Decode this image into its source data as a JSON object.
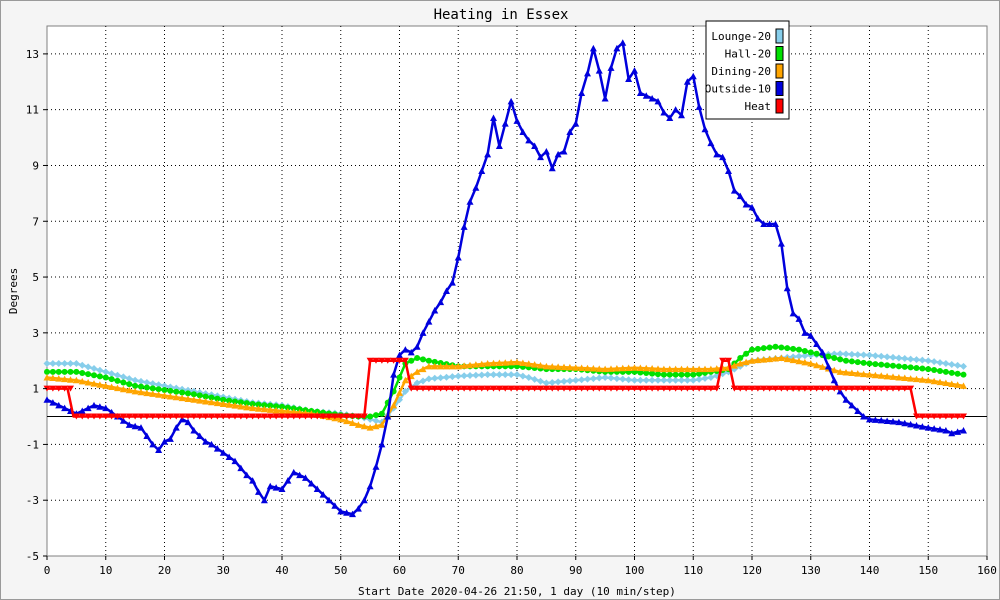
{
  "chart_data": {
    "type": "line",
    "title": "Heating in Essex",
    "xlabel": "Start Date 2020-04-26 21:50, 1 day (10 min/step)",
    "ylabel": "Degrees",
    "xlim": [
      0,
      160
    ],
    "ylim": [
      -5,
      14
    ],
    "xticks": [
      0,
      10,
      20,
      30,
      40,
      50,
      60,
      70,
      80,
      90,
      100,
      110,
      120,
      130,
      140,
      150,
      160
    ],
    "yticks": [
      -5,
      -3,
      -1,
      1,
      3,
      5,
      7,
      9,
      11,
      13
    ],
    "grid": true,
    "legend_position": "top-right",
    "reference_line_y": 0,
    "series": [
      {
        "name": "Lounge-20",
        "color": "#87ceeb",
        "marker": "diamond",
        "x": [
          0,
          5,
          10,
          15,
          20,
          25,
          30,
          35,
          40,
          45,
          50,
          53,
          55,
          57,
          59,
          61,
          63,
          65,
          70,
          75,
          80,
          82,
          85,
          90,
          95,
          100,
          105,
          110,
          113,
          116,
          118,
          120,
          125,
          130,
          135,
          140,
          145,
          150,
          156
        ],
        "values": [
          1.9,
          1.9,
          1.6,
          1.3,
          1.1,
          0.9,
          0.7,
          0.5,
          0.4,
          0.2,
          0.1,
          0.0,
          -0.1,
          -0.2,
          0.3,
          0.9,
          1.2,
          1.35,
          1.45,
          1.5,
          1.5,
          1.4,
          1.2,
          1.3,
          1.4,
          1.3,
          1.3,
          1.3,
          1.4,
          1.6,
          1.8,
          2.0,
          2.1,
          2.2,
          2.25,
          2.2,
          2.1,
          2.0,
          1.8
        ]
      },
      {
        "name": "Hall-20",
        "color": "#00e000",
        "marker": "circle",
        "x": [
          0,
          5,
          10,
          15,
          20,
          25,
          30,
          35,
          40,
          45,
          50,
          53,
          55,
          57,
          59,
          61,
          63,
          65,
          70,
          75,
          80,
          85,
          90,
          95,
          100,
          105,
          110,
          113,
          116,
          118,
          120,
          124,
          128,
          132,
          136,
          140,
          145,
          150,
          156
        ],
        "values": [
          1.6,
          1.6,
          1.4,
          1.1,
          0.95,
          0.8,
          0.6,
          0.45,
          0.35,
          0.2,
          0.05,
          0.0,
          0.0,
          0.1,
          0.9,
          1.9,
          2.1,
          2.0,
          1.8,
          1.8,
          1.8,
          1.7,
          1.7,
          1.6,
          1.6,
          1.5,
          1.5,
          1.6,
          1.7,
          2.1,
          2.4,
          2.5,
          2.4,
          2.2,
          2.0,
          1.9,
          1.8,
          1.7,
          1.5
        ]
      },
      {
        "name": "Dining-20",
        "color": "#ffa500",
        "marker": "triangle",
        "x": [
          0,
          5,
          10,
          15,
          20,
          25,
          30,
          35,
          40,
          45,
          50,
          53,
          55,
          57,
          59,
          61,
          63,
          65,
          70,
          75,
          80,
          85,
          90,
          95,
          100,
          105,
          110,
          113,
          116,
          118,
          120,
          125,
          130,
          135,
          140,
          145,
          150,
          156
        ],
        "values": [
          1.4,
          1.3,
          1.1,
          0.9,
          0.75,
          0.6,
          0.45,
          0.3,
          0.2,
          0.1,
          -0.1,
          -0.3,
          -0.4,
          -0.3,
          0.4,
          1.3,
          1.6,
          1.8,
          1.8,
          1.9,
          1.95,
          1.8,
          1.75,
          1.7,
          1.75,
          1.7,
          1.7,
          1.7,
          1.75,
          1.9,
          2.0,
          2.1,
          1.9,
          1.6,
          1.5,
          1.4,
          1.3,
          1.1
        ]
      },
      {
        "name": "Outside-10",
        "color": "#0000dd",
        "marker": "triangle",
        "x": [
          0,
          3,
          5,
          8,
          10,
          12,
          14,
          16,
          17,
          18,
          19,
          20,
          21,
          22,
          23,
          24,
          25,
          26,
          27,
          28,
          30,
          32,
          34,
          35,
          36,
          37,
          38,
          40,
          42,
          44,
          46,
          48,
          50,
          52,
          53,
          54,
          55,
          56,
          57,
          58,
          59,
          60,
          61,
          62,
          63,
          64,
          65,
          66,
          67,
          68,
          69,
          70,
          71,
          72,
          73,
          74,
          75,
          76,
          77,
          78,
          79,
          80,
          81,
          82,
          83,
          84,
          85,
          86,
          87,
          88,
          89,
          90,
          91,
          92,
          93,
          94,
          95,
          96,
          97,
          98,
          99,
          100,
          101,
          102,
          103,
          104,
          105,
          106,
          107,
          108,
          109,
          110,
          111,
          112,
          113,
          114,
          115,
          116,
          117,
          118,
          119,
          120,
          121,
          122,
          123,
          124,
          125,
          126,
          127,
          128,
          129,
          130,
          131,
          132,
          133,
          134,
          135,
          136,
          137,
          138,
          139,
          140,
          145,
          150,
          153,
          154,
          156
        ],
        "values": [
          0.6,
          0.3,
          0.1,
          0.4,
          0.3,
          0.0,
          -0.3,
          -0.4,
          -0.7,
          -1.0,
          -1.2,
          -0.9,
          -0.8,
          -0.4,
          -0.1,
          -0.2,
          -0.5,
          -0.7,
          -0.9,
          -1.0,
          -1.3,
          -1.6,
          -2.1,
          -2.3,
          -2.7,
          -3.0,
          -2.5,
          -2.6,
          -2.0,
          -2.2,
          -2.6,
          -3.0,
          -3.4,
          -3.5,
          -3.3,
          -3.0,
          -2.5,
          -1.8,
          -1.0,
          0.0,
          1.5,
          2.2,
          2.4,
          2.3,
          2.5,
          3.0,
          3.4,
          3.8,
          4.1,
          4.5,
          4.8,
          5.7,
          6.8,
          7.7,
          8.2,
          8.8,
          9.4,
          10.7,
          9.7,
          10.5,
          11.3,
          10.6,
          10.2,
          9.9,
          9.7,
          9.3,
          9.5,
          8.9,
          9.4,
          9.5,
          10.2,
          10.5,
          11.6,
          12.3,
          13.2,
          12.4,
          11.4,
          12.5,
          13.2,
          13.4,
          12.1,
          12.4,
          11.6,
          11.5,
          11.4,
          11.3,
          10.9,
          10.7,
          11.0,
          10.8,
          12.0,
          12.2,
          11.1,
          10.3,
          9.8,
          9.4,
          9.3,
          8.8,
          8.1,
          7.9,
          7.6,
          7.5,
          7.1,
          6.9,
          6.9,
          6.9,
          6.2,
          4.6,
          3.7,
          3.5,
          3.0,
          2.9,
          2.6,
          2.3,
          1.8,
          1.3,
          0.9,
          0.6,
          0.4,
          0.2,
          0.0,
          -0.1,
          -0.2,
          -0.4,
          -0.5,
          -0.6,
          -0.5
        ]
      },
      {
        "name": "Heat",
        "color": "#ff0000",
        "marker": "triangle-down",
        "step": true,
        "x": [
          0,
          3.5,
          4.5,
          54,
          55,
          61,
          62,
          114,
          115,
          116,
          117,
          147,
          148,
          156
        ],
        "values": [
          1,
          1,
          0,
          0,
          2,
          2,
          1,
          1,
          2,
          2,
          1,
          1,
          0,
          0
        ]
      }
    ]
  }
}
